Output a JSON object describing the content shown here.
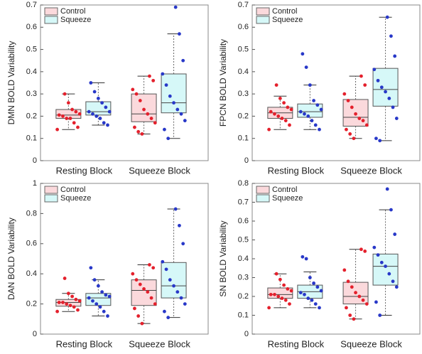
{
  "chart_data": [
    {
      "type": "box",
      "ylabel": "DMN BOLD Variability",
      "categories": [
        "Resting Block",
        "Squeeze Block"
      ],
      "ylim": [
        0,
        0.7
      ],
      "yticks": [
        0,
        0.1,
        0.2,
        0.3,
        0.4,
        0.5,
        0.6,
        0.7
      ],
      "legend": "upper left",
      "series": [
        {
          "name": "Control",
          "color": "#fbd9dc",
          "point_color": "#e4202c",
          "boxes": [
            {
              "whislo": 0.14,
              "q1": 0.19,
              "med": 0.205,
              "q3": 0.23,
              "whishi": 0.3,
              "points": [
                0.14,
                0.15,
                0.17,
                0.19,
                0.19,
                0.2,
                0.205,
                0.21,
                0.22,
                0.23,
                0.26,
                0.3
              ]
            },
            {
              "whislo": 0.12,
              "q1": 0.175,
              "med": 0.21,
              "q3": 0.3,
              "whishi": 0.38,
              "points": [
                0.12,
                0.13,
                0.15,
                0.17,
                0.19,
                0.21,
                0.23,
                0.27,
                0.3,
                0.32,
                0.36,
                0.38
              ]
            }
          ]
        },
        {
          "name": "Squeeze",
          "color": "#d6f8f8",
          "point_color": "#2838c8",
          "boxes": [
            {
              "whislo": 0.16,
              "q1": 0.205,
              "med": 0.22,
              "q3": 0.265,
              "whishi": 0.35,
              "points": [
                0.16,
                0.17,
                0.19,
                0.2,
                0.21,
                0.22,
                0.22,
                0.24,
                0.26,
                0.28,
                0.31,
                0.35
              ]
            },
            {
              "whislo": 0.1,
              "q1": 0.215,
              "med": 0.26,
              "q3": 0.39,
              "whishi": 0.57,
              "points": [
                0.1,
                0.14,
                0.18,
                0.21,
                0.23,
                0.26,
                0.29,
                0.34,
                0.39,
                0.45,
                0.57,
                0.69
              ]
            }
          ]
        }
      ]
    },
    {
      "type": "box",
      "ylabel": "FPCN BOLD Variability",
      "categories": [
        "Resting Block",
        "Squeeze Block"
      ],
      "ylim": [
        0,
        0.7
      ],
      "yticks": [
        0,
        0.1,
        0.2,
        0.3,
        0.4,
        0.5,
        0.6,
        0.7
      ],
      "legend": "upper left",
      "series": [
        {
          "name": "Control",
          "color": "#fbd9dc",
          "point_color": "#e4202c",
          "boxes": [
            {
              "whislo": 0.14,
              "q1": 0.19,
              "med": 0.215,
              "q3": 0.24,
              "whishi": 0.29,
              "points": [
                0.14,
                0.16,
                0.18,
                0.19,
                0.2,
                0.21,
                0.22,
                0.23,
                0.24,
                0.26,
                0.28,
                0.34
              ]
            },
            {
              "whislo": 0.1,
              "q1": 0.155,
              "med": 0.195,
              "q3": 0.275,
              "whishi": 0.38,
              "points": [
                0.1,
                0.12,
                0.14,
                0.16,
                0.18,
                0.19,
                0.21,
                0.24,
                0.27,
                0.3,
                0.34,
                0.38
              ]
            }
          ]
        },
        {
          "name": "Squeeze",
          "color": "#d6f8f8",
          "point_color": "#2838c8",
          "boxes": [
            {
              "whislo": 0.14,
              "q1": 0.195,
              "med": 0.22,
              "q3": 0.255,
              "whishi": 0.34,
              "points": [
                0.14,
                0.16,
                0.18,
                0.2,
                0.21,
                0.22,
                0.23,
                0.25,
                0.27,
                0.34,
                0.42,
                0.48
              ]
            },
            {
              "whislo": 0.09,
              "q1": 0.245,
              "med": 0.32,
              "q3": 0.415,
              "whishi": 0.645,
              "points": [
                0.09,
                0.1,
                0.19,
                0.24,
                0.28,
                0.31,
                0.33,
                0.36,
                0.41,
                0.47,
                0.56,
                0.645
              ]
            }
          ]
        }
      ]
    },
    {
      "type": "box",
      "ylabel": "DAN BOLD Variability",
      "categories": [
        "Resting Block",
        "Squeeze Block"
      ],
      "ylim": [
        0,
        1
      ],
      "yticks": [
        0,
        0.2,
        0.4,
        0.6,
        0.8,
        1
      ],
      "legend": "upper left",
      "series": [
        {
          "name": "Control",
          "color": "#fbd9dc",
          "point_color": "#e4202c",
          "boxes": [
            {
              "whislo": 0.15,
              "q1": 0.185,
              "med": 0.21,
              "q3": 0.23,
              "whishi": 0.27,
              "points": [
                0.15,
                0.16,
                0.18,
                0.19,
                0.2,
                0.21,
                0.21,
                0.22,
                0.23,
                0.25,
                0.27,
                0.37
              ]
            },
            {
              "whislo": 0.07,
              "q1": 0.19,
              "med": 0.29,
              "q3": 0.36,
              "whishi": 0.46,
              "points": [
                0.07,
                0.12,
                0.17,
                0.2,
                0.24,
                0.28,
                0.3,
                0.33,
                0.36,
                0.4,
                0.44,
                0.46
              ]
            }
          ]
        },
        {
          "name": "Squeeze",
          "color": "#d6f8f8",
          "point_color": "#2838c8",
          "boxes": [
            {
              "whislo": 0.12,
              "q1": 0.19,
              "med": 0.24,
              "q3": 0.27,
              "whishi": 0.36,
              "points": [
                0.12,
                0.15,
                0.18,
                0.2,
                0.22,
                0.24,
                0.25,
                0.26,
                0.28,
                0.32,
                0.36,
                0.44
              ]
            },
            {
              "whislo": 0.11,
              "q1": 0.24,
              "med": 0.32,
              "q3": 0.475,
              "whishi": 0.83,
              "points": [
                0.11,
                0.15,
                0.2,
                0.24,
                0.28,
                0.32,
                0.36,
                0.43,
                0.48,
                0.6,
                0.72,
                0.83
              ]
            }
          ]
        }
      ]
    },
    {
      "type": "box",
      "ylabel": "SN BOLD Variability",
      "categories": [
        "Resting Block",
        "Squeeze Block"
      ],
      "ylim": [
        0,
        0.8
      ],
      "yticks": [
        0,
        0.1,
        0.2,
        0.3,
        0.4,
        0.5,
        0.6,
        0.7,
        0.8
      ],
      "legend": "upper left",
      "series": [
        {
          "name": "Control",
          "color": "#fbd9dc",
          "point_color": "#e4202c",
          "boxes": [
            {
              "whislo": 0.14,
              "q1": 0.19,
              "med": 0.21,
              "q3": 0.245,
              "whishi": 0.32,
              "points": [
                0.14,
                0.16,
                0.18,
                0.19,
                0.2,
                0.21,
                0.21,
                0.23,
                0.24,
                0.26,
                0.29,
                0.32
              ]
            },
            {
              "whislo": 0.08,
              "q1": 0.16,
              "med": 0.2,
              "q3": 0.275,
              "whishi": 0.45,
              "points": [
                0.08,
                0.1,
                0.14,
                0.16,
                0.18,
                0.2,
                0.22,
                0.25,
                0.28,
                0.34,
                0.44,
                0.45
              ]
            }
          ]
        },
        {
          "name": "Squeeze",
          "color": "#d6f8f8",
          "point_color": "#2838c8",
          "boxes": [
            {
              "whislo": 0.14,
              "q1": 0.19,
              "med": 0.225,
              "q3": 0.26,
              "whishi": 0.33,
              "points": [
                0.14,
                0.16,
                0.18,
                0.19,
                0.21,
                0.22,
                0.23,
                0.25,
                0.27,
                0.3,
                0.4,
                0.41
              ]
            },
            {
              "whislo": 0.1,
              "q1": 0.26,
              "med": 0.36,
              "q3": 0.425,
              "whishi": 0.66,
              "points": [
                0.1,
                0.17,
                0.25,
                0.28,
                0.32,
                0.36,
                0.38,
                0.42,
                0.46,
                0.53,
                0.66,
                0.77
              ]
            }
          ]
        }
      ]
    }
  ]
}
